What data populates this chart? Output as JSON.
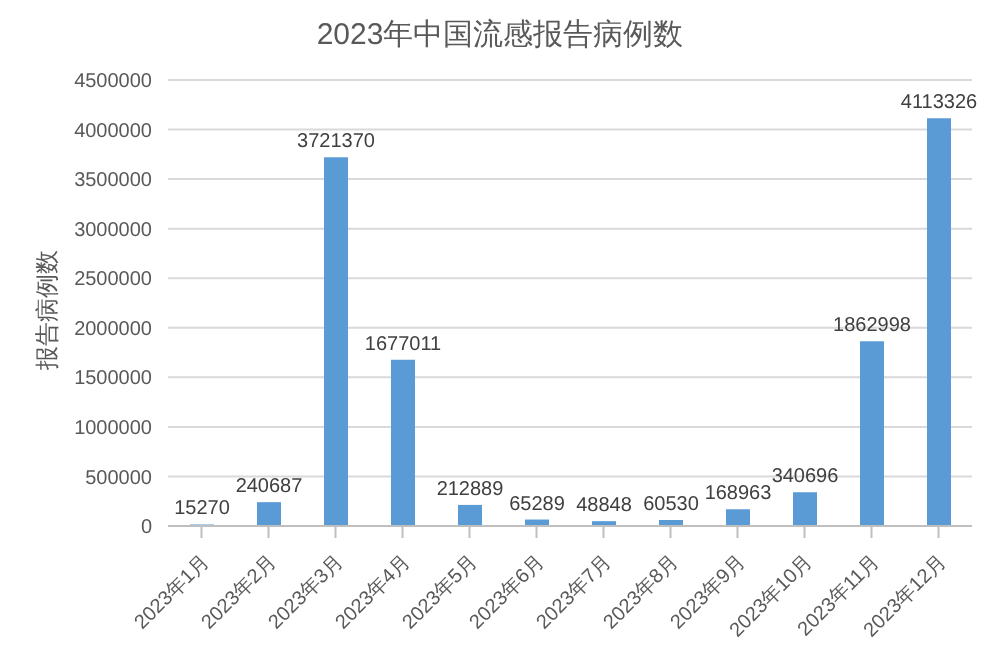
{
  "chart_data": {
    "type": "bar",
    "title": "2023年中国流感报告病例数",
    "ylabel": "报告病例数",
    "categories": [
      "2023年1月",
      "2023年2月",
      "2023年3月",
      "2023年4月",
      "2023年5月",
      "2023年6月",
      "2023年7月",
      "2023年8月",
      "2023年9月",
      "2023年10月",
      "2023年11月",
      "2023年12月"
    ],
    "values": [
      15270,
      240687,
      3721370,
      1677011,
      212889,
      65289,
      48848,
      60530,
      168963,
      340696,
      1862998,
      4113326
    ],
    "color": "#5b9bd5",
    "ylim": [
      0,
      4500000
    ],
    "yticks": [
      0,
      500000,
      1000000,
      1500000,
      2000000,
      2500000,
      3000000,
      3500000,
      4000000,
      4500000
    ],
    "grid": "y",
    "data_labels": true,
    "legend": false
  }
}
